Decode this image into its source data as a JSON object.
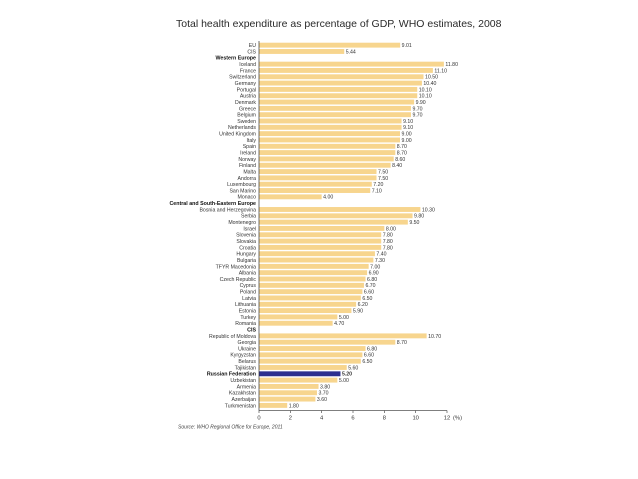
{
  "chart_data": {
    "type": "bar",
    "orientation": "horizontal",
    "title": "Total health expenditure as percentage of GDP, WHO estimates, 2008",
    "xlabel": "(%)",
    "xlim": [
      0,
      12
    ],
    "xticks": [
      0,
      2,
      4,
      6,
      8,
      10,
      12
    ],
    "source": "Source: WHO Regional Office for Europe, 2011",
    "colors": {
      "bar": "#f7d58e",
      "highlight": "#2c2f8f",
      "axis": "#333333"
    },
    "rows": [
      {
        "label": "EU",
        "value": 9.01,
        "display": "9.01"
      },
      {
        "label": "CIS",
        "value": 5.44,
        "display": "5.44"
      },
      {
        "label": "Western Europe",
        "group": true
      },
      {
        "label": "Iceland",
        "value": 11.8,
        "display": "11.80"
      },
      {
        "label": "France",
        "value": 11.1,
        "display": "11.10"
      },
      {
        "label": "Switzerland",
        "value": 10.5,
        "display": "10.50"
      },
      {
        "label": "Germany",
        "value": 10.4,
        "display": "10.40"
      },
      {
        "label": "Portugal",
        "value": 10.1,
        "display": "10.10"
      },
      {
        "label": "Austria",
        "value": 10.1,
        "display": "10.10"
      },
      {
        "label": "Denmark",
        "value": 9.9,
        "display": "9.90"
      },
      {
        "label": "Greece",
        "value": 9.7,
        "display": "9.70"
      },
      {
        "label": "Belgium",
        "value": 9.7,
        "display": "9.70"
      },
      {
        "label": "Sweden",
        "value": 9.1,
        "display": "9.10"
      },
      {
        "label": "Netherlands",
        "value": 9.1,
        "display": "9.10"
      },
      {
        "label": "United Kingdom",
        "value": 9.0,
        "display": "9.00"
      },
      {
        "label": "Italy",
        "value": 9.0,
        "display": "9.00"
      },
      {
        "label": "Spain",
        "value": 8.7,
        "display": "8.70"
      },
      {
        "label": "Ireland",
        "value": 8.7,
        "display": "8.70"
      },
      {
        "label": "Norway",
        "value": 8.6,
        "display": "8.60"
      },
      {
        "label": "Finland",
        "value": 8.4,
        "display": "8.40"
      },
      {
        "label": "Malta",
        "value": 7.5,
        "display": "7.50"
      },
      {
        "label": "Andorra",
        "value": 7.5,
        "display": "7.50"
      },
      {
        "label": "Luxembourg",
        "value": 7.2,
        "display": "7.20"
      },
      {
        "label": "San Marino",
        "value": 7.1,
        "display": "7.10"
      },
      {
        "label": "Monaco",
        "value": 4.0,
        "display": "4.00"
      },
      {
        "label": "Central and South-Eastern Europe",
        "group": true
      },
      {
        "label": "Bosnia and Herzegovina",
        "value": 10.3,
        "display": "10.30"
      },
      {
        "label": "Serbia",
        "value": 9.8,
        "display": "9.80"
      },
      {
        "label": "Montenegro",
        "value": 9.5,
        "display": "9.50"
      },
      {
        "label": "Israel",
        "value": 8.0,
        "display": "8.00"
      },
      {
        "label": "Slovenia",
        "value": 7.8,
        "display": "7.80"
      },
      {
        "label": "Slovakia",
        "value": 7.8,
        "display": "7.80"
      },
      {
        "label": "Croatia",
        "value": 7.8,
        "display": "7.80"
      },
      {
        "label": "Hungary",
        "value": 7.4,
        "display": "7.40"
      },
      {
        "label": "Bulgaria",
        "value": 7.3,
        "display": "7.30"
      },
      {
        "label": "TFYR Macedonia",
        "value": 7.0,
        "display": "7.00"
      },
      {
        "label": "Albania",
        "value": 6.9,
        "display": "6.90"
      },
      {
        "label": "Czech Republic",
        "value": 6.8,
        "display": "6.80"
      },
      {
        "label": "Cyprus",
        "value": 6.7,
        "display": "6.70"
      },
      {
        "label": "Poland",
        "value": 6.6,
        "display": "6.60"
      },
      {
        "label": "Latvia",
        "value": 6.5,
        "display": "6.50"
      },
      {
        "label": "Lithuania",
        "value": 6.2,
        "display": "6.20"
      },
      {
        "label": "Estonia",
        "value": 5.9,
        "display": "5.90"
      },
      {
        "label": "Turkey",
        "value": 5.0,
        "display": "5.00"
      },
      {
        "label": "Romania",
        "value": 4.7,
        "display": "4.70"
      },
      {
        "label": "CIS",
        "group": true
      },
      {
        "label": "Republic of Moldova",
        "value": 10.7,
        "display": "10.70"
      },
      {
        "label": "Georgia",
        "value": 8.7,
        "display": "8.70"
      },
      {
        "label": "Ukraine",
        "value": 6.8,
        "display": "6.80"
      },
      {
        "label": "Kyrgyzstan",
        "value": 6.6,
        "display": "6.60"
      },
      {
        "label": "Belarus",
        "value": 6.5,
        "display": "6.50"
      },
      {
        "label": "Tajikistan",
        "value": 5.6,
        "display": "5.60"
      },
      {
        "label": "Russian Federation",
        "value": 5.2,
        "display": "5.20",
        "highlight": true
      },
      {
        "label": "Uzbekistan",
        "value": 5.0,
        "display": "5.00"
      },
      {
        "label": "Armenia",
        "value": 3.8,
        "display": "3.80"
      },
      {
        "label": "Kazakhstan",
        "value": 3.7,
        "display": "3.70"
      },
      {
        "label": "Azerbaijan",
        "value": 3.6,
        "display": "3.60"
      },
      {
        "label": "Turkmenistan",
        "value": 1.8,
        "display": "1.80"
      }
    ]
  }
}
